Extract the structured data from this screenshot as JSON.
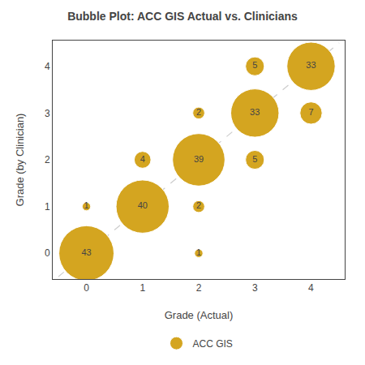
{
  "chart_data": {
    "type": "bubble",
    "title": "Bubble Plot: ACC GIS Actual vs. Clinicians",
    "xlabel": "Grade (Actual)",
    "ylabel": "Grade (by Clinician)",
    "series": [
      {
        "name": "ACC GIS",
        "color": "#D4A520",
        "x": [
          0,
          0,
          1,
          1,
          2,
          2,
          2,
          2,
          3,
          3,
          3,
          4,
          4
        ],
        "y": [
          0,
          1,
          1,
          2,
          0,
          1,
          2,
          3,
          2,
          3,
          4,
          3,
          4
        ],
        "sizes": [
          43,
          1,
          40,
          4,
          1,
          2,
          39,
          2,
          5,
          33,
          5,
          7,
          33
        ]
      }
    ],
    "reference_line": {
      "x": [
        -0.5,
        4.5
      ],
      "y": [
        -0.5,
        4.5
      ],
      "color": "#cccccc",
      "line_style": "dash"
    },
    "data_labels": true,
    "legend": "bottom",
    "grid": false,
    "xlim": [
      -0.6,
      4.6
    ],
    "ylim": [
      -0.55,
      4.55
    ],
    "xticks": [
      0,
      1,
      2,
      3,
      4
    ],
    "yticks": [
      0,
      1,
      2,
      3,
      4
    ]
  }
}
